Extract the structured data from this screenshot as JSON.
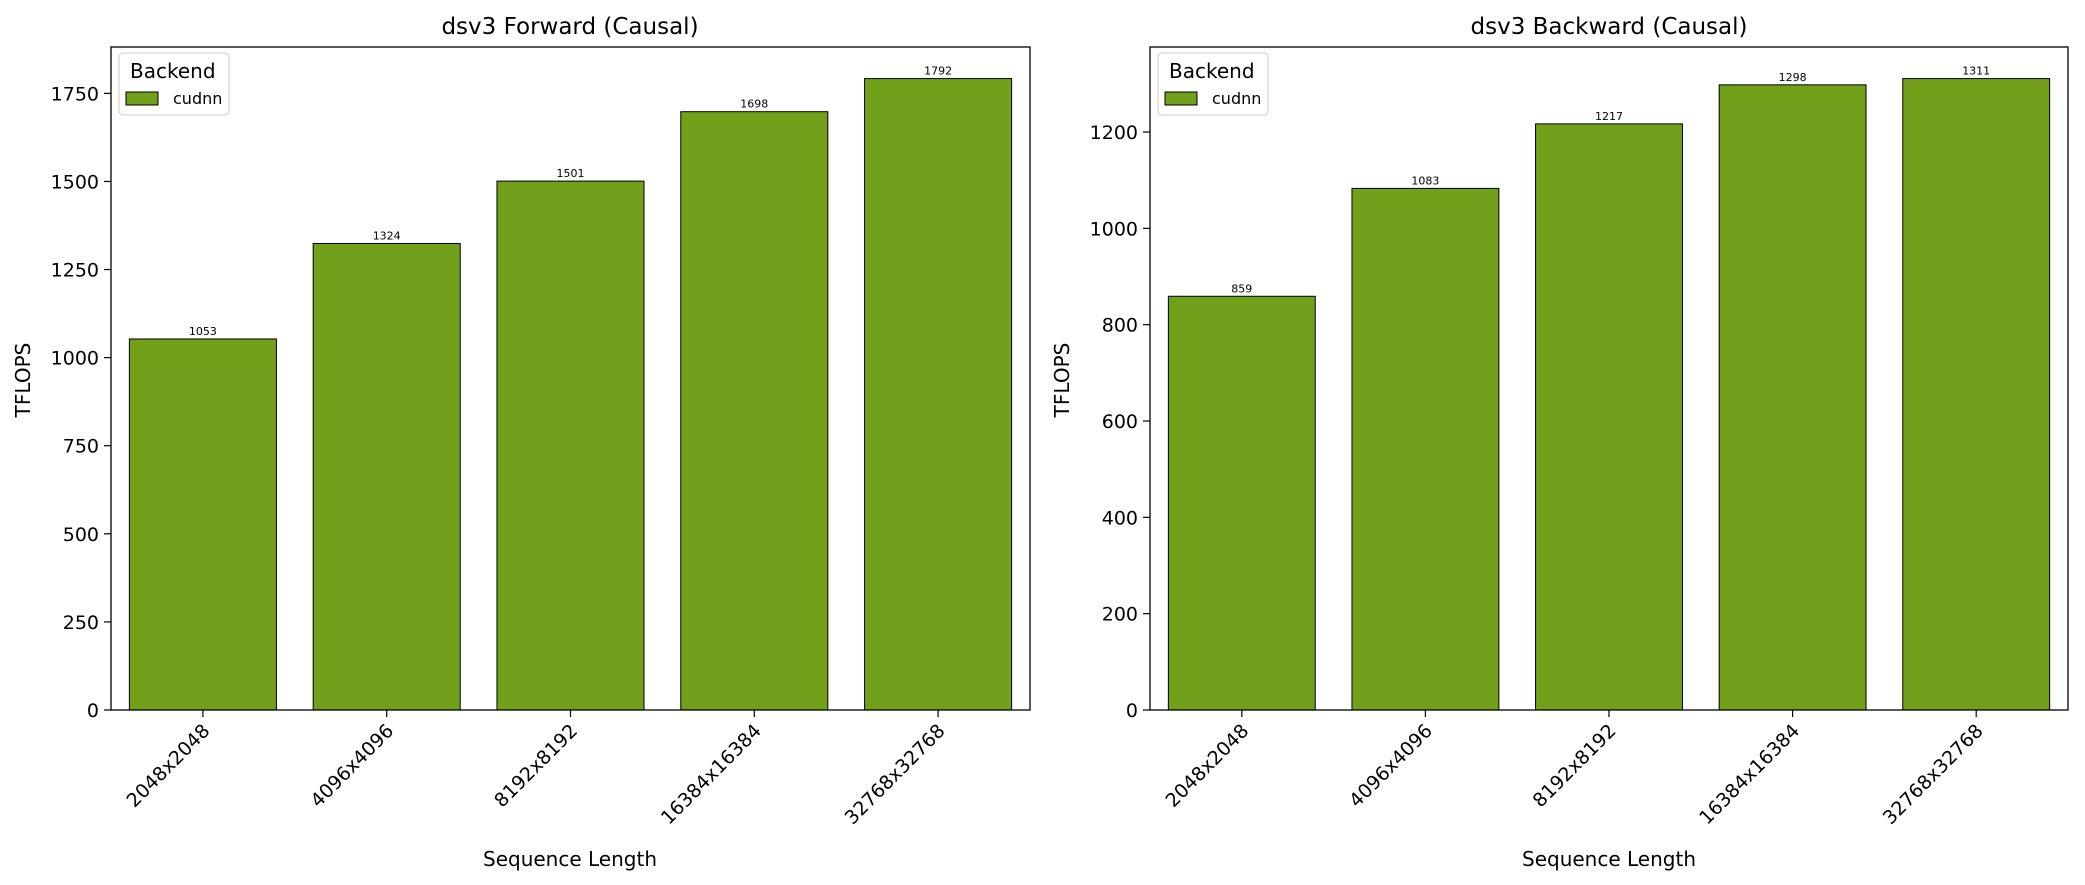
{
  "chart_data": [
    {
      "type": "bar",
      "title": "dsv3 Forward (Causal)",
      "xlabel": "Sequence Length",
      "ylabel": "TFLOPS",
      "categories": [
        "2048x2048",
        "4096x4096",
        "8192x8192",
        "16384x16384",
        "32768x32768"
      ],
      "series": [
        {
          "name": "cudnn",
          "values": [
            1053,
            1324,
            1501,
            1698,
            1792
          ],
          "color": "#72a01a"
        }
      ],
      "value_labels": [
        "1053",
        "1324",
        "1501",
        "1698",
        "1792"
      ],
      "ylim": [
        0,
        1881.6
      ],
      "yticks": [
        0,
        250,
        500,
        750,
        1000,
        1250,
        1500,
        1750
      ],
      "ytick_labels": [
        "0",
        "250",
        "500",
        "750",
        "1000",
        "1250",
        "1500",
        "1750"
      ],
      "legend": {
        "title": "Backend",
        "position": "top-left"
      },
      "grid": false
    },
    {
      "type": "bar",
      "title": "dsv3 Backward (Causal)",
      "xlabel": "Sequence Length",
      "ylabel": "TFLOPS",
      "categories": [
        "2048x2048",
        "4096x4096",
        "8192x8192",
        "16384x16384",
        "32768x32768"
      ],
      "series": [
        {
          "name": "cudnn",
          "values": [
            859,
            1083,
            1217,
            1298,
            1311
          ],
          "color": "#72a01a"
        }
      ],
      "value_labels": [
        "859",
        "1083",
        "1217",
        "1298",
        "1311"
      ],
      "ylim": [
        0,
        1376.55
      ],
      "yticks": [
        0,
        200,
        400,
        600,
        800,
        1000,
        1200
      ],
      "ytick_labels": [
        "0",
        "200",
        "400",
        "600",
        "800",
        "1000",
        "1200"
      ],
      "legend": {
        "title": "Backend",
        "position": "top-left"
      },
      "grid": false
    }
  ]
}
